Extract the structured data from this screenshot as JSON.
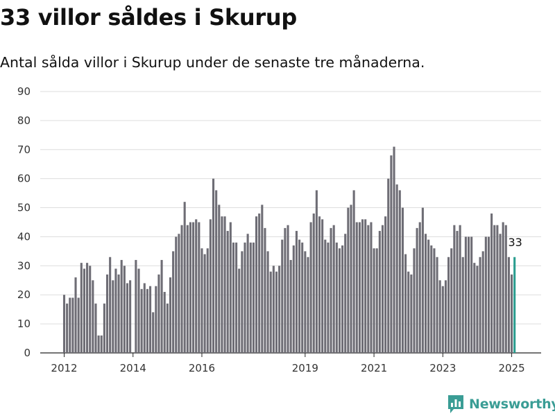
{
  "header": {
    "title": "33 villor såldes i Skurup",
    "subtitle": "Antal sålda villor i Skurup under de senaste tre månaderna."
  },
  "brand": {
    "name": "Newsworthy"
  },
  "colors": {
    "bar": "#6e6d75",
    "highlight": "#2a9d8f",
    "grid": "#dddddd",
    "brand": "#3a9d95"
  },
  "chart_data": {
    "type": "bar",
    "title": "33 villor såldes i Skurup",
    "subtitle": "Antal sålda villor i Skurup under de senaste tre månaderna.",
    "xlabel": "",
    "ylabel": "",
    "ylim": [
      0,
      90
    ],
    "yticks": [
      0,
      10,
      20,
      30,
      40,
      50,
      60,
      70,
      80,
      90
    ],
    "xticks": [
      {
        "label": "2012",
        "index": 0
      },
      {
        "label": "2014",
        "index": 24
      },
      {
        "label": "2016",
        "index": 48
      },
      {
        "label": "2019",
        "index": 84
      },
      {
        "label": "2021",
        "index": 108
      },
      {
        "label": "2023",
        "index": 132
      },
      {
        "label": "2025",
        "index": 156
      }
    ],
    "grid": true,
    "legend": "none",
    "highlight_index": 157,
    "annotation": "33",
    "values": [
      20,
      17,
      19,
      19,
      26,
      19,
      31,
      29,
      31,
      30,
      25,
      17,
      6,
      6,
      17,
      27,
      33,
      25,
      29,
      27,
      32,
      30,
      24,
      25,
      0,
      32,
      29,
      22,
      24,
      22,
      23,
      14,
      23,
      27,
      32,
      21,
      17,
      26,
      35,
      40,
      41,
      44,
      52,
      44,
      45,
      45,
      46,
      45,
      36,
      34,
      36,
      46,
      60,
      56,
      51,
      47,
      47,
      42,
      45,
      38,
      38,
      29,
      35,
      38,
      41,
      38,
      38,
      47,
      48,
      51,
      43,
      35,
      28,
      30,
      28,
      30,
      39,
      43,
      44,
      32,
      37,
      42,
      39,
      38,
      35,
      33,
      45,
      48,
      56,
      47,
      46,
      39,
      38,
      43,
      44,
      38,
      36,
      37,
      41,
      50,
      51,
      56,
      45,
      45,
      46,
      46,
      44,
      45,
      36,
      36,
      42,
      44,
      47,
      60,
      68,
      71,
      58,
      56,
      50,
      34,
      28,
      27,
      36,
      43,
      45,
      50,
      41,
      39,
      37,
      36,
      33,
      25,
      23,
      25,
      33,
      36,
      44,
      42,
      44,
      33,
      40,
      40,
      40,
      31,
      30,
      33,
      35,
      40,
      40,
      48,
      44,
      44,
      41,
      45,
      44,
      33,
      27,
      33
    ]
  }
}
